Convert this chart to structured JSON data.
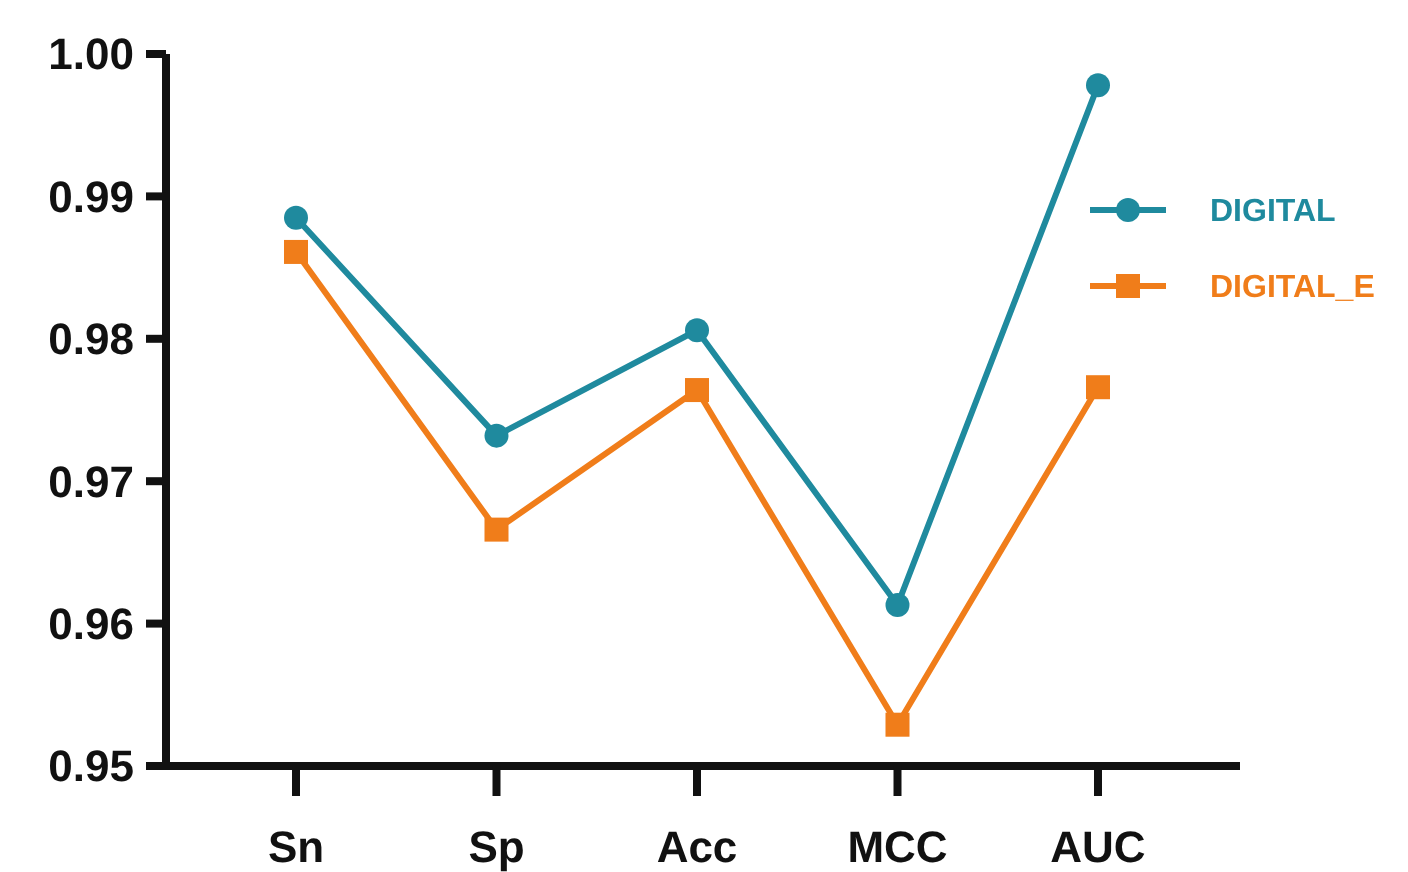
{
  "chart_data": {
    "type": "line",
    "categories": [
      "Sn",
      "Sp",
      "Acc",
      "MCC",
      "AUC"
    ],
    "series": [
      {
        "name": "DIGITAL",
        "color": "#1f8a9e",
        "marker": "circle",
        "values": [
          0.9885,
          0.9732,
          0.9806,
          0.9613,
          0.9978
        ]
      },
      {
        "name": "DIGITAL_E",
        "color": "#f07d1a",
        "marker": "square",
        "values": [
          0.9861,
          0.9666,
          0.9764,
          0.9529,
          0.9766
        ]
      }
    ],
    "ylim": [
      0.95,
      1.0
    ],
    "yticks": [
      {
        "value": 0.95,
        "label": "0.95"
      },
      {
        "value": 0.96,
        "label": "0.96"
      },
      {
        "value": 0.97,
        "label": "0.97"
      },
      {
        "value": 0.98,
        "label": "0.98"
      },
      {
        "value": 0.99,
        "label": "0.99"
      },
      {
        "value": 1.0,
        "label": "1.00"
      }
    ],
    "grid": false,
    "legend": "top right"
  }
}
